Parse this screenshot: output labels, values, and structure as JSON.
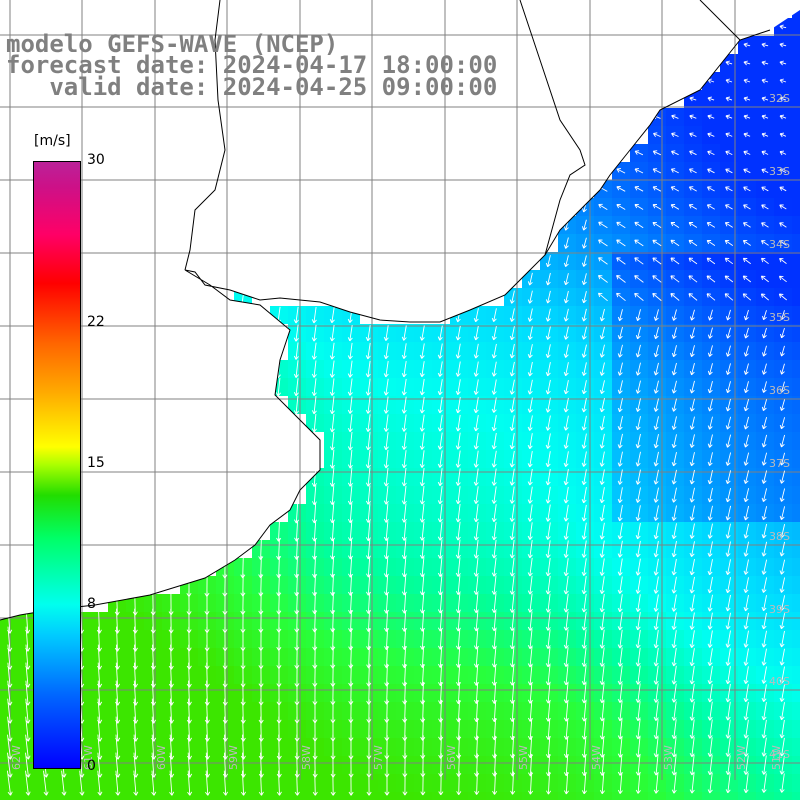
{
  "title": {
    "line1": "modelo GEFS-WAVE (NCEP)",
    "line2": "forecast date: 2024-04-17 18:00:00",
    "line3": "   valid date: 2024-04-25 09:00:00"
  },
  "colorbar": {
    "units": "[m/s]",
    "ticks": [
      {
        "value": 30,
        "label": "30"
      },
      {
        "value": 22,
        "label": "22"
      },
      {
        "value": 15,
        "label": "15"
      },
      {
        "value": 8,
        "label": "8"
      },
      {
        "value": 0,
        "label": "0"
      }
    ],
    "min": 0,
    "max": 30
  },
  "map": {
    "lat_labels": [
      "32S",
      "33S",
      "34S",
      "35S",
      "36S",
      "37S",
      "38S",
      "39S",
      "40S",
      "41S"
    ],
    "lon_labels": [
      "62W",
      "61W",
      "60W",
      "59W",
      "58W",
      "57W",
      "56W",
      "55W",
      "54W",
      "53W",
      "52W",
      "51W"
    ],
    "field": "wind speed with direction arrows",
    "land_color": "#ffffff",
    "grid_color": "#808080"
  }
}
